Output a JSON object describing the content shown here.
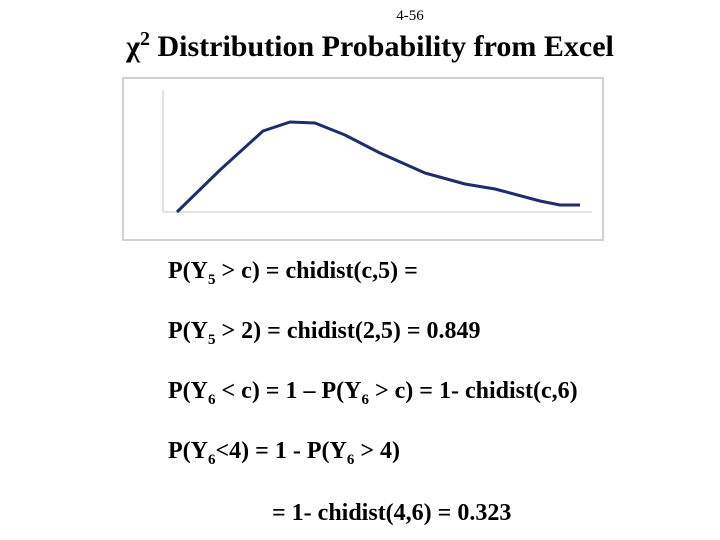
{
  "page_number": "4-56",
  "title": [
    "χ",
    "2",
    " Distribution Probability from Excel"
  ],
  "lines": [
    [
      "P(Y",
      "5",
      " > c) = chidist(c,5) ="
    ],
    [
      "P(Y",
      "5",
      " > 2) = chidist(2,5) = 0.849"
    ],
    [
      "P(Y",
      "6",
      " < c) = 1 – P(Y",
      "6",
      " > c) = 1- chidist(c,6)"
    ],
    [
      "P(Y",
      "6",
      "<4) = 1 - P(Y",
      "6",
      " > 4)"
    ],
    [
      "= 1- chidist(4,6) = 0.323"
    ]
  ]
}
